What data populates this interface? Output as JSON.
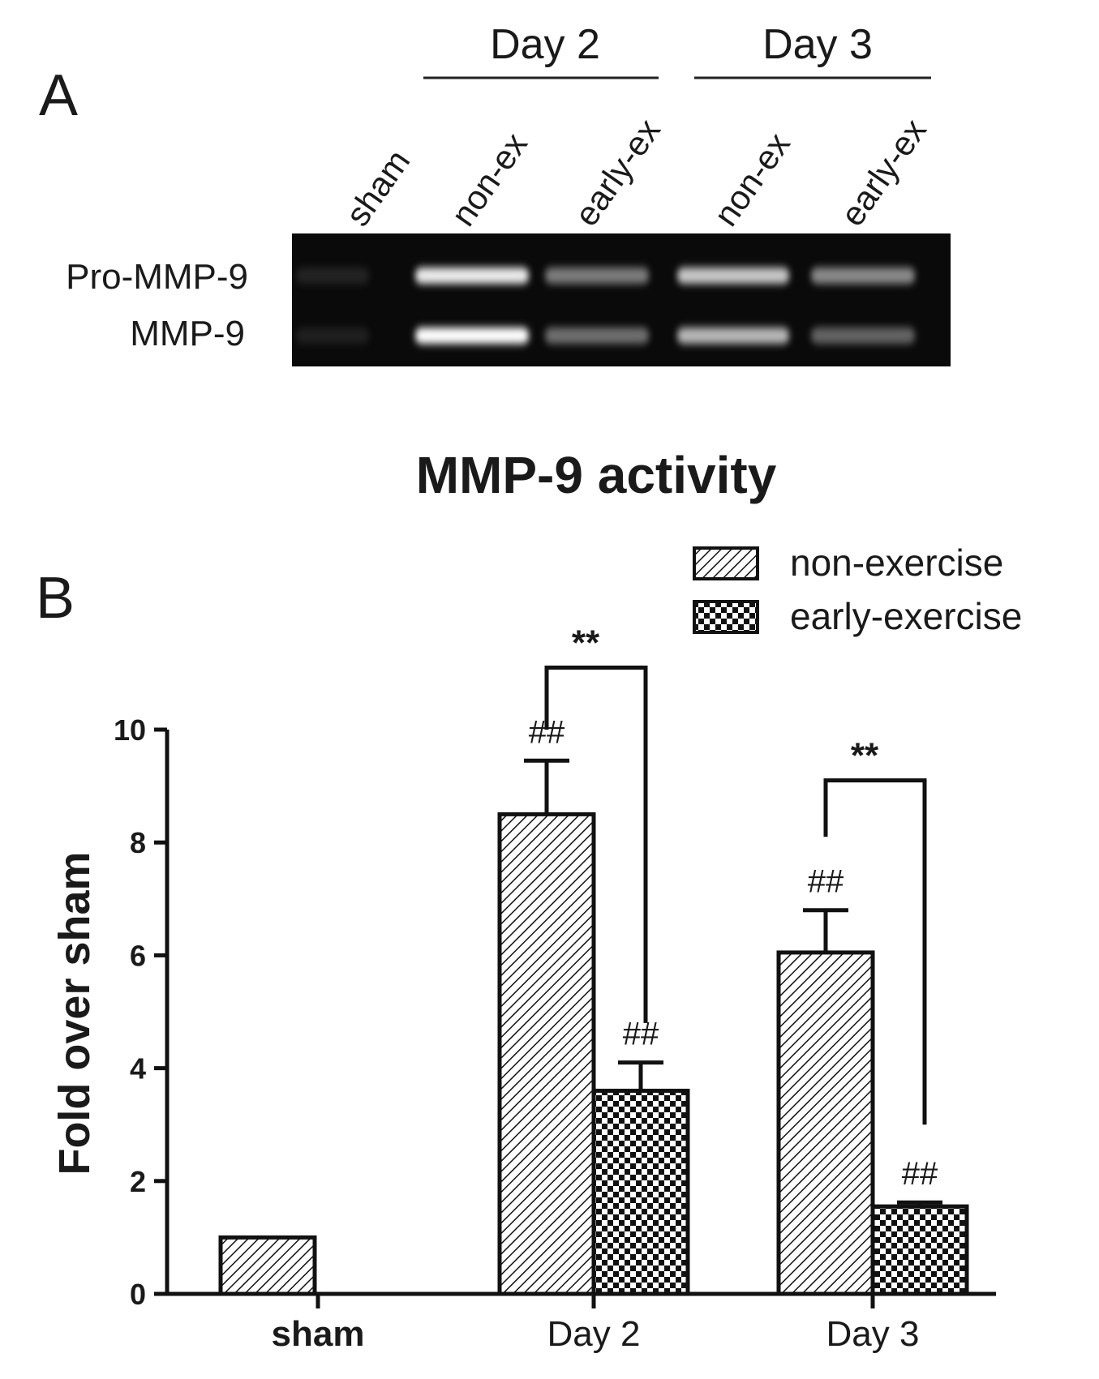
{
  "panel_a": {
    "letter": "A",
    "groups": [
      {
        "label": "Day 2"
      },
      {
        "label": "Day 3"
      }
    ],
    "lanes": [
      "sham",
      "non-ex",
      "early-ex",
      "non-ex",
      "early-ex"
    ],
    "bands": [
      "Pro-MMP-9",
      "MMP-9"
    ],
    "lane_band_intensity": [
      [
        0.15,
        0.12
      ],
      [
        0.95,
        1.0
      ],
      [
        0.6,
        0.55
      ],
      [
        0.85,
        0.8
      ],
      [
        0.65,
        0.5
      ]
    ]
  },
  "panel_b": {
    "letter": "B"
  },
  "chart_data": {
    "type": "bar",
    "title": "MMP-9 activity",
    "xlabel": "",
    "ylabel": "Fold over sham",
    "categories": [
      "sham",
      "Day 2",
      "Day 3"
    ],
    "ylim": [
      0,
      10
    ],
    "yticks": [
      "0",
      "2",
      "4",
      "6",
      "8",
      "10"
    ],
    "grid": false,
    "legend_position": "top-right",
    "series": [
      {
        "name": "non-exercise",
        "pattern": "diagonal-hatch",
        "values": [
          1.0,
          8.5,
          6.05
        ],
        "errors": [
          0,
          0.95,
          0.75
        ]
      },
      {
        "name": "early-exercise",
        "pattern": "checkered",
        "values": [
          null,
          3.6,
          1.55
        ],
        "errors": [
          null,
          0.5,
          0.07
        ]
      }
    ],
    "annotations": {
      "hash_marks": "##",
      "significance": "**"
    }
  }
}
